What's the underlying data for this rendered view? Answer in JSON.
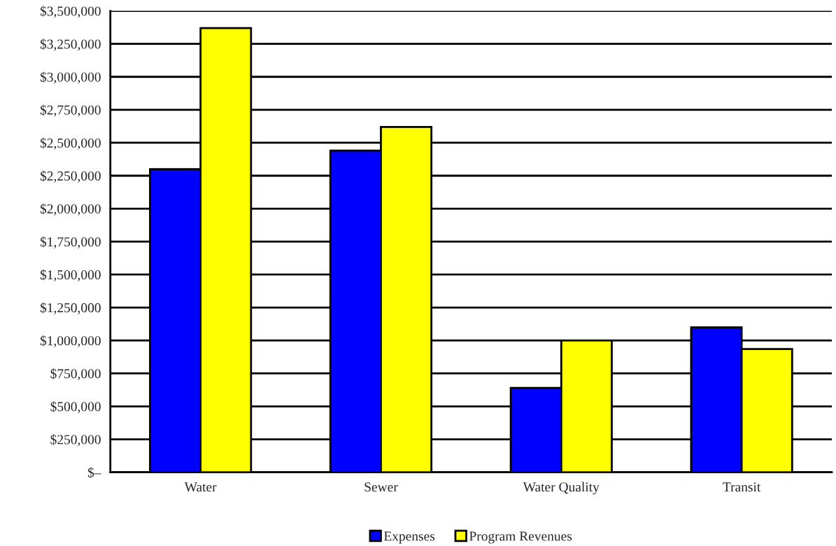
{
  "chart_data": {
    "type": "bar",
    "categories": [
      "Water",
      "Sewer",
      "Water Quality",
      "Transit"
    ],
    "series": [
      {
        "name": "Expenses",
        "color": "#0000ff",
        "values": [
          2300000,
          2440000,
          640000,
          1100000
        ]
      },
      {
        "name": "Program Revenues",
        "color": "#ffff00",
        "values": [
          3370000,
          2620000,
          1000000,
          935000
        ]
      }
    ],
    "ylim": [
      0,
      3500000
    ],
    "yticks": [
      {
        "value": 0,
        "label": "$–"
      },
      {
        "value": 250000,
        "label": "$250,000"
      },
      {
        "value": 500000,
        "label": "$500,000"
      },
      {
        "value": 750000,
        "label": "$750,000"
      },
      {
        "value": 1000000,
        "label": "$1,000,000"
      },
      {
        "value": 1250000,
        "label": "$1,250,000"
      },
      {
        "value": 1500000,
        "label": "$1,500,000"
      },
      {
        "value": 1750000,
        "label": "$1,750,000"
      },
      {
        "value": 2000000,
        "label": "$2,000,000"
      },
      {
        "value": 2250000,
        "label": "$2,250,000"
      },
      {
        "value": 2500000,
        "label": "$2,500,000"
      },
      {
        "value": 2750000,
        "label": "$2,750,000"
      },
      {
        "value": 3000000,
        "label": "$3,000,000"
      },
      {
        "value": 3250000,
        "label": "$3,250,000"
      },
      {
        "value": 3500000,
        "label": "$3,500,000"
      }
    ],
    "grid": "y",
    "legend": "bottom"
  }
}
